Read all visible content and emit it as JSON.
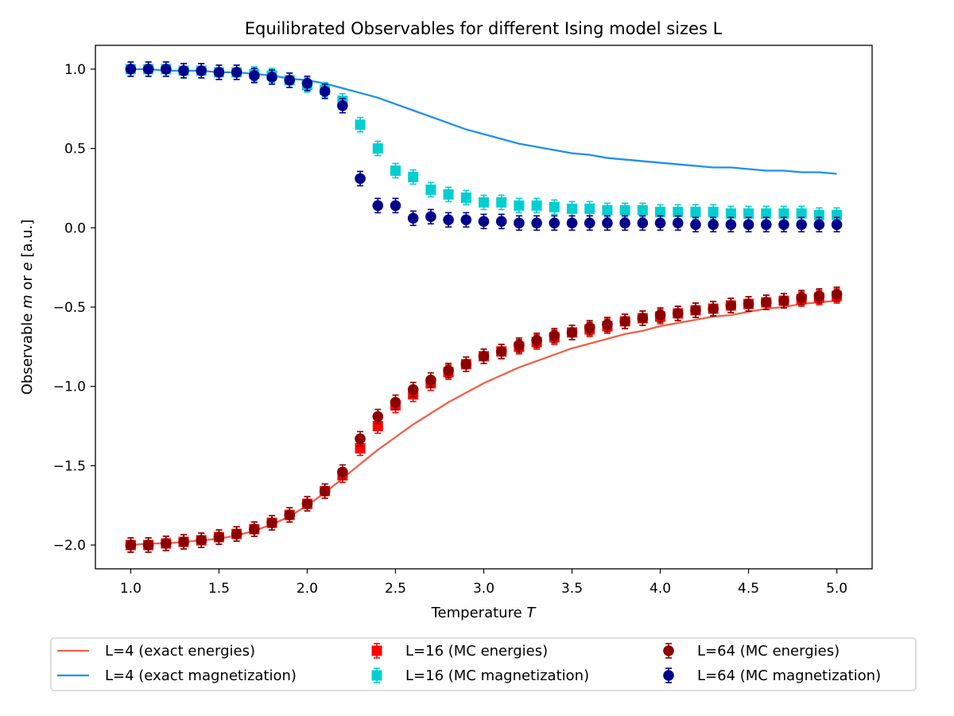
{
  "chart_data": {
    "type": "scatter",
    "title": "Equilibrated Observables for different Ising model sizes L",
    "xlabel_prefix": "Temperature ",
    "xlabel_var": "T",
    "ylabel_prefix": "Observable ",
    "ylabel_var_m": "m",
    "ylabel_mid": " or ",
    "ylabel_var_e": "e",
    "ylabel_suffix": " [a.u.]",
    "xlim": [
      0.8,
      5.2
    ],
    "ylim": [
      -2.15,
      1.15
    ],
    "xticks": [
      1.0,
      1.5,
      2.0,
      2.5,
      3.0,
      3.5,
      4.0,
      4.5,
      5.0
    ],
    "xtick_labels": [
      "1.0",
      "1.5",
      "2.0",
      "2.5",
      "3.0",
      "3.5",
      "4.0",
      "4.5",
      "5.0"
    ],
    "yticks": [
      1.0,
      0.5,
      0.0,
      -0.5,
      -1.0,
      -1.5,
      -2.0
    ],
    "ytick_labels": [
      "1.0",
      "0.5",
      "0.0",
      "−0.5",
      "−1.0",
      "−1.5",
      "−2.0"
    ],
    "grid": false,
    "legend_position": "bottom",
    "legend_columns": 3,
    "x": [
      1.0,
      1.1,
      1.2,
      1.3,
      1.4,
      1.5,
      1.6,
      1.7,
      1.8,
      1.9,
      2.0,
      2.1,
      2.2,
      2.3,
      2.4,
      2.5,
      2.6,
      2.7,
      2.8,
      2.9,
      3.0,
      3.1,
      3.2,
      3.3,
      3.4,
      3.5,
      3.6,
      3.7,
      3.8,
      3.9,
      4.0,
      4.1,
      4.2,
      4.3,
      4.4,
      4.5,
      4.6,
      4.7,
      4.8,
      4.9,
      5.0
    ],
    "series": [
      {
        "name": "L=4 (exact energies)",
        "style": "line",
        "color": "#f26048",
        "values": [
          -2.0,
          -1.99,
          -1.99,
          -1.98,
          -1.97,
          -1.96,
          -1.94,
          -1.91,
          -1.87,
          -1.82,
          -1.75,
          -1.67,
          -1.58,
          -1.49,
          -1.4,
          -1.32,
          -1.24,
          -1.17,
          -1.1,
          -1.04,
          -0.98,
          -0.93,
          -0.88,
          -0.84,
          -0.8,
          -0.76,
          -0.73,
          -0.7,
          -0.67,
          -0.65,
          -0.62,
          -0.6,
          -0.58,
          -0.56,
          -0.55,
          -0.53,
          -0.51,
          -0.5,
          -0.48,
          -0.47,
          -0.46
        ]
      },
      {
        "name": "L=4 (exact magnetization)",
        "style": "line",
        "color": "#1e8ff0",
        "values": [
          1.0,
          1.0,
          0.99,
          0.99,
          0.99,
          0.98,
          0.98,
          0.97,
          0.96,
          0.94,
          0.93,
          0.91,
          0.88,
          0.85,
          0.82,
          0.78,
          0.74,
          0.7,
          0.66,
          0.62,
          0.59,
          0.56,
          0.53,
          0.51,
          0.49,
          0.47,
          0.46,
          0.44,
          0.43,
          0.42,
          0.41,
          0.4,
          0.39,
          0.38,
          0.38,
          0.37,
          0.36,
          0.36,
          0.35,
          0.35,
          0.34
        ]
      },
      {
        "name": "L=16 (MC energies)",
        "style": "square",
        "color": "#ff0000",
        "values": [
          -2.0,
          -2.0,
          -1.99,
          -1.98,
          -1.97,
          -1.95,
          -1.93,
          -1.9,
          -1.86,
          -1.81,
          -1.74,
          -1.66,
          -1.56,
          -1.39,
          -1.25,
          -1.12,
          -1.05,
          -0.98,
          -0.91,
          -0.86,
          -0.81,
          -0.78,
          -0.75,
          -0.72,
          -0.69,
          -0.66,
          -0.64,
          -0.62,
          -0.59,
          -0.57,
          -0.56,
          -0.54,
          -0.52,
          -0.51,
          -0.49,
          -0.48,
          -0.47,
          -0.46,
          -0.45,
          -0.44,
          -0.43
        ]
      },
      {
        "name": "L=16 (MC magnetization)",
        "style": "square",
        "color": "#00ced1",
        "values": [
          1.0,
          1.0,
          1.0,
          0.99,
          0.99,
          0.98,
          0.98,
          0.97,
          0.96,
          0.93,
          0.9,
          0.87,
          0.8,
          0.65,
          0.5,
          0.36,
          0.32,
          0.24,
          0.21,
          0.19,
          0.16,
          0.16,
          0.14,
          0.14,
          0.13,
          0.12,
          0.12,
          0.11,
          0.11,
          0.11,
          0.1,
          0.1,
          0.1,
          0.1,
          0.09,
          0.09,
          0.09,
          0.09,
          0.09,
          0.08,
          0.08
        ]
      },
      {
        "name": "L=64 (MC energies)",
        "style": "circle",
        "color": "#8b0000",
        "values": [
          -2.0,
          -2.0,
          -1.99,
          -1.98,
          -1.97,
          -1.95,
          -1.93,
          -1.9,
          -1.86,
          -1.81,
          -1.74,
          -1.66,
          -1.54,
          -1.33,
          -1.19,
          -1.1,
          -1.02,
          -0.96,
          -0.9,
          -0.86,
          -0.81,
          -0.78,
          -0.74,
          -0.71,
          -0.68,
          -0.66,
          -0.63,
          -0.61,
          -0.59,
          -0.57,
          -0.55,
          -0.54,
          -0.52,
          -0.51,
          -0.49,
          -0.48,
          -0.47,
          -0.46,
          -0.44,
          -0.43,
          -0.42
        ]
      },
      {
        "name": "L=64 (MC magnetization)",
        "style": "circle",
        "color": "#00008b",
        "values": [
          1.0,
          1.0,
          1.0,
          0.99,
          0.99,
          0.98,
          0.98,
          0.96,
          0.95,
          0.93,
          0.91,
          0.86,
          0.77,
          0.31,
          0.14,
          0.14,
          0.06,
          0.07,
          0.05,
          0.05,
          0.04,
          0.04,
          0.03,
          0.03,
          0.03,
          0.03,
          0.03,
          0.03,
          0.03,
          0.03,
          0.03,
          0.03,
          0.02,
          0.02,
          0.02,
          0.02,
          0.02,
          0.02,
          0.02,
          0.02,
          0.02
        ]
      }
    ]
  }
}
